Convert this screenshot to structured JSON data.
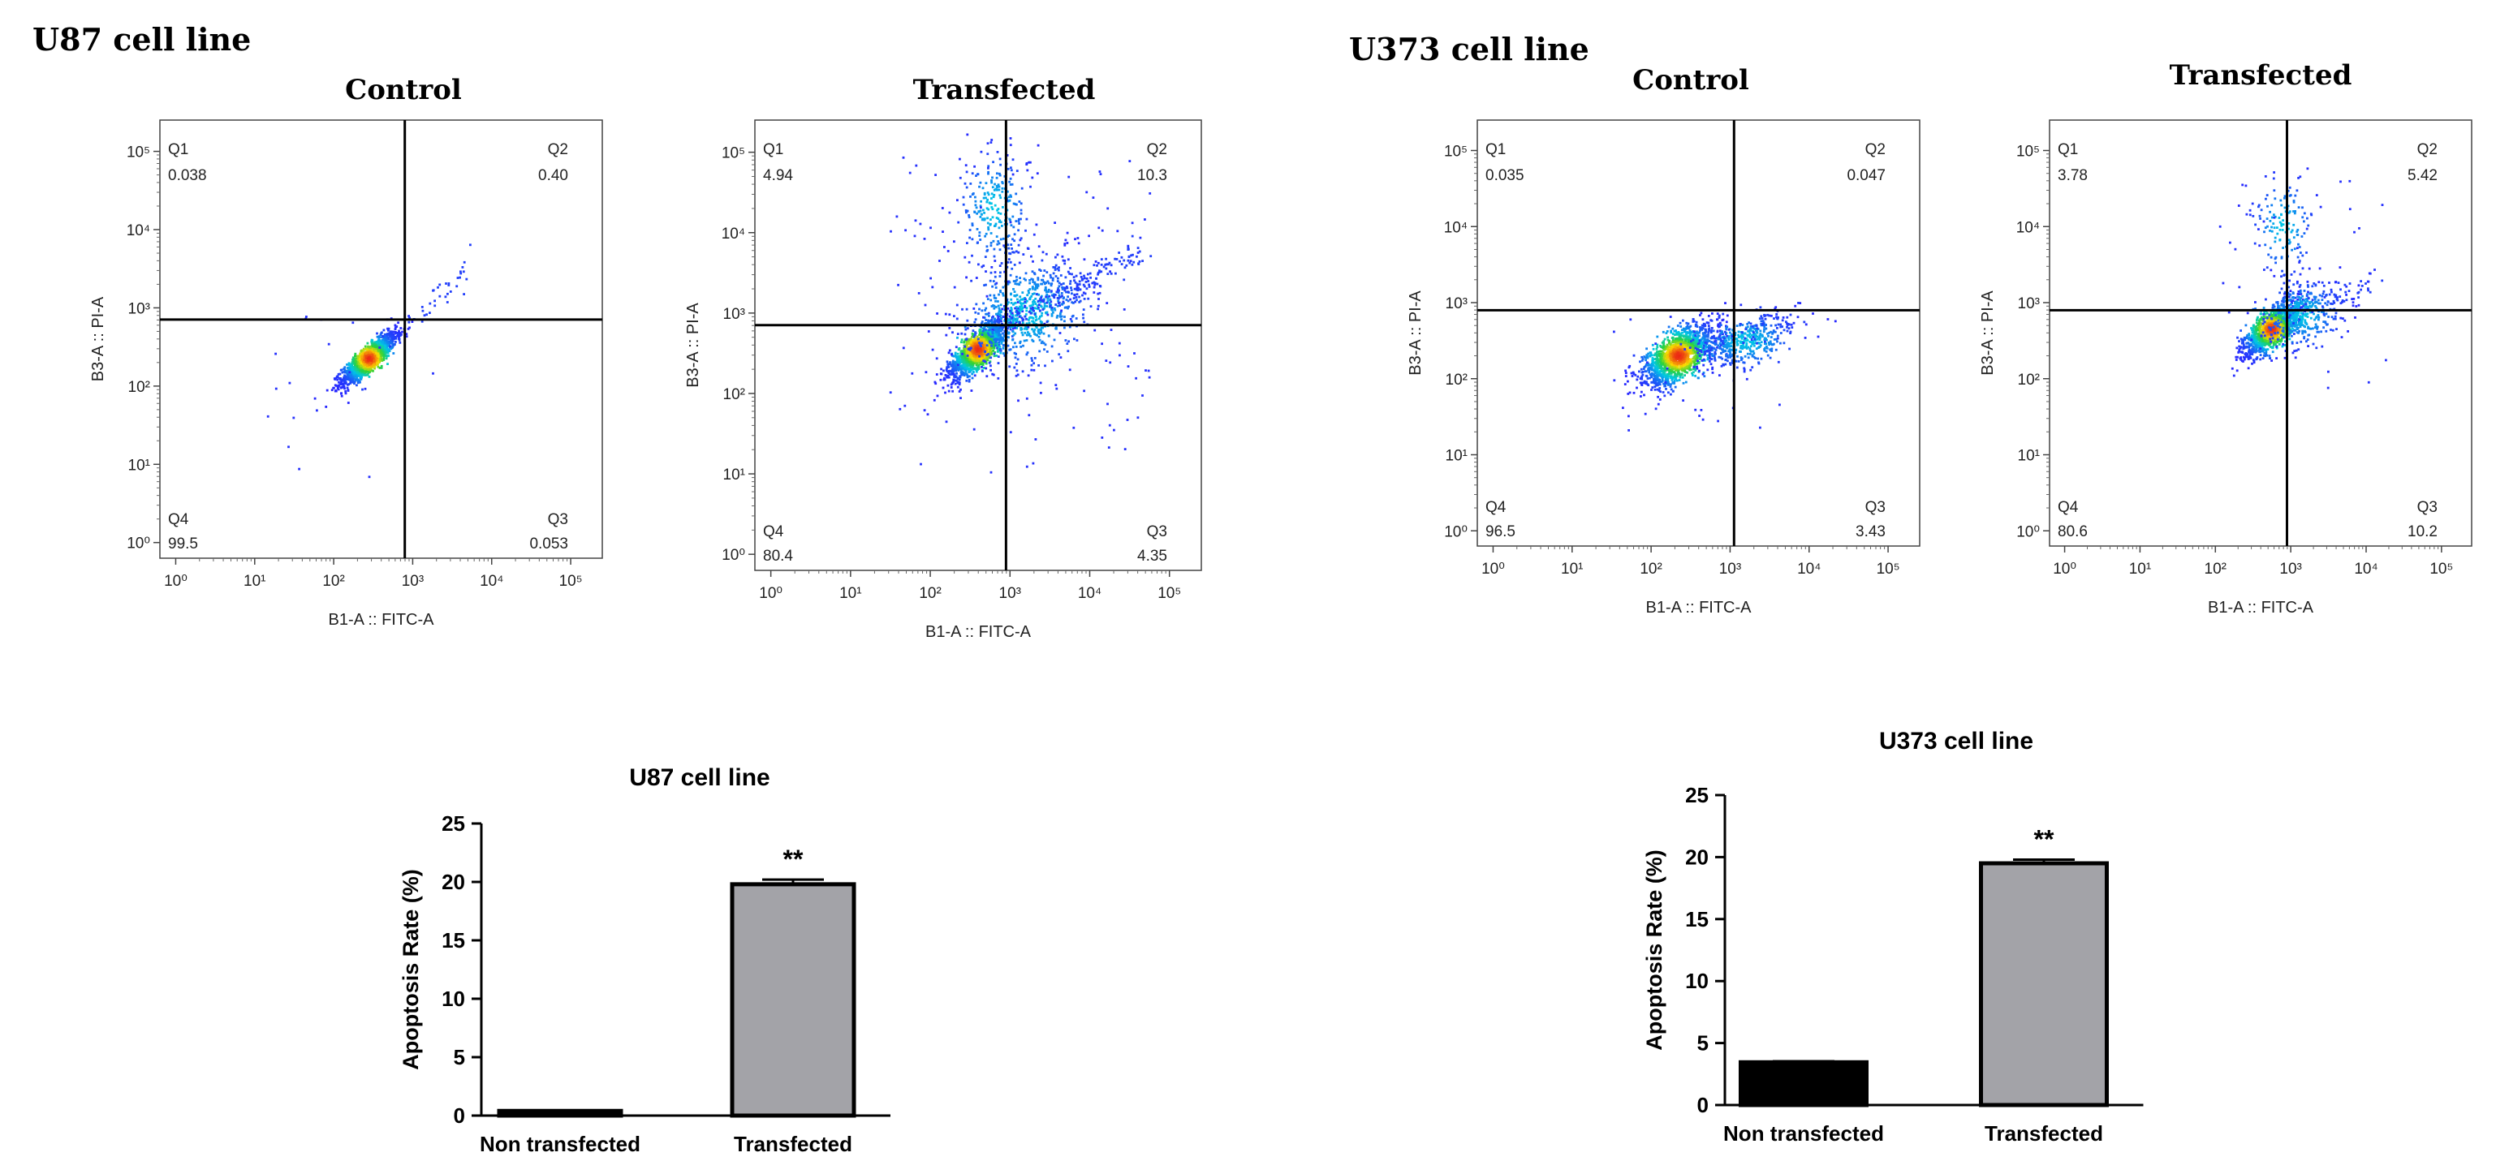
{
  "figure": {
    "u87_heading": "U87 cell line",
    "u373_heading": "U373 cell line"
  },
  "flow_plots": [
    {
      "id": "u87-control",
      "title": "Control",
      "xlabel": "B1-A :: FITC-A",
      "ylabel": "B3-A :: PI-A",
      "quadrants": {
        "q1_label": "Q1",
        "q1": "0.038",
        "q2_label": "Q2",
        "q2": "0.40",
        "q3_label": "Q3",
        "q3": "0.053",
        "q4_label": "Q4",
        "q4": "99.5"
      },
      "gate_x_log": 2.9,
      "gate_y_log": 2.85,
      "clusters": [
        {
          "cx": 2.45,
          "cy": 2.35,
          "sx": 0.17,
          "sy": 0.16,
          "rho": 0.85,
          "n": 1400
        }
      ],
      "diagonal_tail": {
        "from": [
          2.6,
          2.5
        ],
        "to": [
          3.8,
          3.6
        ],
        "n": 45
      },
      "sparse": {
        "xr": [
          1.0,
          3.5
        ],
        "yr": [
          0.8,
          3.2
        ],
        "n": 20
      }
    },
    {
      "id": "u87-transfected",
      "title": "Transfected",
      "xlabel": "B1-A :: FITC-A",
      "ylabel": "B3-A :: PI-A",
      "quadrants": {
        "q1_label": "Q1",
        "q1": "4.94",
        "q2_label": "Q2",
        "q2": "10.3",
        "q3_label": "Q3",
        "q3": "4.35",
        "q4_label": "Q4",
        "q4": "80.4"
      },
      "gate_x_log": 2.95,
      "gate_y_log": 2.85,
      "clusters": [
        {
          "cx": 2.6,
          "cy": 2.55,
          "sx": 0.18,
          "sy": 0.18,
          "rho": 0.8,
          "n": 1500
        },
        {
          "cx": 3.2,
          "cy": 3.0,
          "sx": 0.4,
          "sy": 0.35,
          "rho": 0.4,
          "n": 700
        },
        {
          "cx": 2.8,
          "cy": 4.3,
          "sx": 0.22,
          "sy": 0.35,
          "rho": 0.0,
          "n": 260
        }
      ],
      "diagonal_tail": {
        "from": [
          3.0,
          2.9
        ],
        "to": [
          4.7,
          3.8
        ],
        "n": 160
      },
      "sparse": {
        "xr": [
          1.5,
          4.8
        ],
        "yr": [
          1.0,
          5.0
        ],
        "n": 140
      }
    },
    {
      "id": "u373-control",
      "title": "Control",
      "xlabel": "B1-A :: FITC-A",
      "ylabel": "B3-A :: PI-A",
      "quadrants": {
        "q1_label": "Q1",
        "q1": "0.035",
        "q2_label": "Q2",
        "q2": "0.047",
        "q3_label": "Q3",
        "q3": "3.43",
        "q4_label": "Q4",
        "q4": "96.5"
      },
      "gate_x_log": 3.05,
      "gate_y_log": 2.9,
      "clusters": [
        {
          "cx": 2.35,
          "cy": 2.3,
          "sx": 0.22,
          "sy": 0.2,
          "rho": 0.6,
          "n": 1500
        },
        {
          "cx": 3.2,
          "cy": 2.5,
          "sx": 0.3,
          "sy": 0.18,
          "rho": 0.5,
          "n": 450
        }
      ],
      "diagonal_tail": {
        "from": [
          2.5,
          2.4
        ],
        "to": [
          3.9,
          2.8
        ],
        "n": 60
      },
      "sparse": {
        "xr": [
          1.5,
          3.8
        ],
        "yr": [
          1.3,
          3.0
        ],
        "n": 25
      }
    },
    {
      "id": "u373-transfected",
      "title": "Transfected",
      "xlabel": "B1-A :: FITC-A",
      "ylabel": "B3-A :: PI-A",
      "quadrants": {
        "q1_label": "Q1",
        "q1": "3.78",
        "q2_label": "Q2",
        "q2": "5.42",
        "q3_label": "Q3",
        "q3": "10.2",
        "q4_label": "Q4",
        "q4": "80.6"
      },
      "gate_x_log": 2.95,
      "gate_y_log": 2.9,
      "clusters": [
        {
          "cx": 2.75,
          "cy": 2.65,
          "sx": 0.18,
          "sy": 0.17,
          "rho": 0.7,
          "n": 1300
        },
        {
          "cx": 3.15,
          "cy": 2.85,
          "sx": 0.25,
          "sy": 0.22,
          "rho": 0.3,
          "n": 400
        },
        {
          "cx": 2.9,
          "cy": 4.0,
          "sx": 0.2,
          "sy": 0.32,
          "rho": 0.0,
          "n": 140
        }
      ],
      "diagonal_tail": {
        "from": [
          3.0,
          2.8
        ],
        "to": [
          4.2,
          3.3
        ],
        "n": 40
      },
      "sparse": {
        "xr": [
          2.0,
          4.3
        ],
        "yr": [
          1.8,
          4.6
        ],
        "n": 40
      }
    }
  ],
  "chart_data": [
    {
      "type": "bar",
      "title": "U87 cell line",
      "categories": [
        "Non transfected",
        "Transfected"
      ],
      "values": [
        0.4,
        19.8
      ],
      "errors": [
        0.05,
        0.4
      ],
      "colors": [
        "#000000",
        "#a3a3a8"
      ],
      "annotations": [
        "",
        "**"
      ],
      "ylabel": "Apoptosis Rate (%)",
      "ylim": [
        0,
        25
      ],
      "yticks": [
        "0",
        "5",
        "10",
        "15",
        "20",
        "25"
      ]
    },
    {
      "type": "bar",
      "title": "U373 cell line",
      "categories": [
        "Non transfected",
        "Transfected"
      ],
      "values": [
        3.45,
        19.5
      ],
      "errors": [
        0.08,
        0.3
      ],
      "colors": [
        "#000000",
        "#a3a3a8"
      ],
      "annotations": [
        "",
        "**"
      ],
      "ylabel": "Apoptosis Rate (%)",
      "ylim": [
        0,
        25
      ],
      "yticks": [
        "0",
        "5",
        "10",
        "15",
        "20",
        "25"
      ]
    }
  ]
}
